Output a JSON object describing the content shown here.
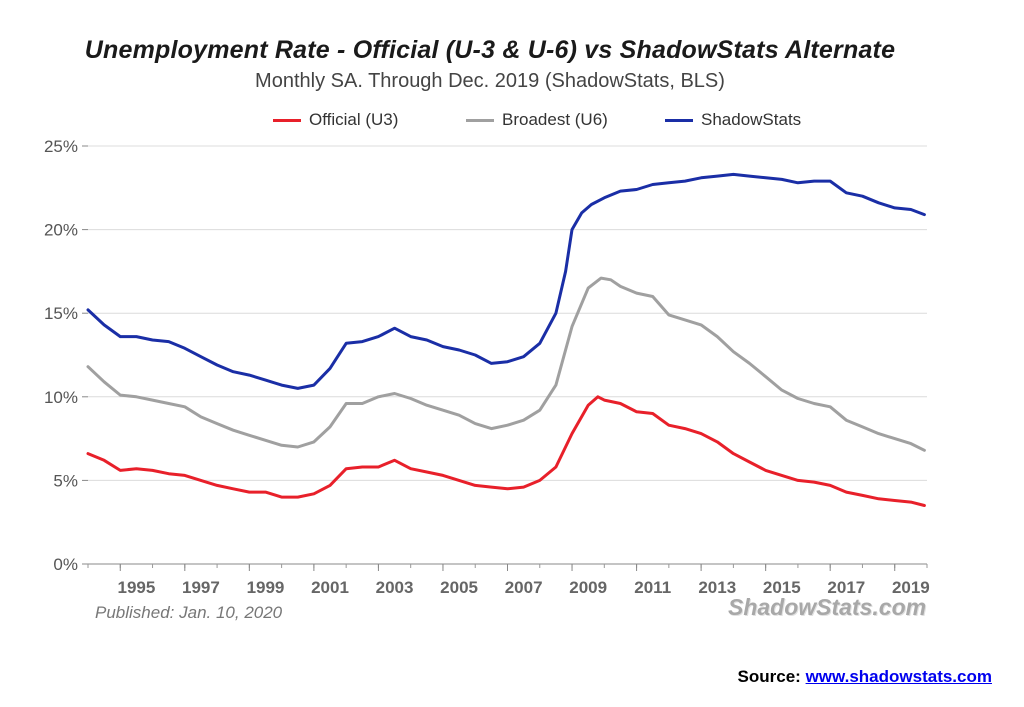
{
  "chart_data": {
    "type": "line",
    "title": "Unemployment Rate - Official (U-3 & U-6) vs ShadowStats Alternate",
    "subtitle": "Monthly SA. Through Dec. 2019  (ShadowStats, BLS)",
    "xlabel": "",
    "ylabel": "",
    "xlim": [
      1994.0,
      2020.0
    ],
    "ylim": [
      0,
      25
    ],
    "grid": true,
    "legend_position": "top",
    "x_ticks": [
      "1995",
      "1997",
      "1999",
      "2001",
      "2003",
      "2005",
      "2007",
      "2009",
      "2011",
      "2013",
      "2015",
      "2017",
      "2019"
    ],
    "y_ticks": [
      "0%",
      "5%",
      "10%",
      "15%",
      "20%",
      "25%"
    ],
    "series": [
      {
        "name": "Official (U3)",
        "color": "#e8202a",
        "x": [
          1994.0,
          1994.5,
          1995.0,
          1995.5,
          1996.0,
          1996.5,
          1997.0,
          1997.5,
          1998.0,
          1998.5,
          1999.0,
          1999.5,
          2000.0,
          2000.5,
          2001.0,
          2001.5,
          2002.0,
          2002.5,
          2003.0,
          2003.5,
          2004.0,
          2004.5,
          2005.0,
          2005.5,
          2006.0,
          2006.5,
          2007.0,
          2007.5,
          2008.0,
          2008.5,
          2009.0,
          2009.5,
          2009.8,
          2010.0,
          2010.5,
          2011.0,
          2011.5,
          2012.0,
          2012.5,
          2013.0,
          2013.5,
          2014.0,
          2014.5,
          2015.0,
          2015.5,
          2016.0,
          2016.5,
          2017.0,
          2017.5,
          2018.0,
          2018.5,
          2019.0,
          2019.5,
          2019.92
        ],
        "values": [
          6.6,
          6.2,
          5.6,
          5.7,
          5.6,
          5.4,
          5.3,
          5.0,
          4.7,
          4.5,
          4.3,
          4.3,
          4.0,
          4.0,
          4.2,
          4.7,
          5.7,
          5.8,
          5.8,
          6.2,
          5.7,
          5.5,
          5.3,
          5.0,
          4.7,
          4.6,
          4.5,
          4.6,
          5.0,
          5.8,
          7.8,
          9.5,
          10.0,
          9.8,
          9.6,
          9.1,
          9.0,
          8.3,
          8.1,
          7.8,
          7.3,
          6.6,
          6.1,
          5.6,
          5.3,
          5.0,
          4.9,
          4.7,
          4.3,
          4.1,
          3.9,
          3.8,
          3.7,
          3.5
        ]
      },
      {
        "name": "Broadest (U6)",
        "color": "#a0a0a0",
        "x": [
          1994.0,
          1994.5,
          1995.0,
          1995.5,
          1996.0,
          1996.5,
          1997.0,
          1997.5,
          1998.0,
          1998.5,
          1999.0,
          1999.5,
          2000.0,
          2000.5,
          2001.0,
          2001.5,
          2002.0,
          2002.5,
          2003.0,
          2003.5,
          2004.0,
          2004.5,
          2005.0,
          2005.5,
          2006.0,
          2006.5,
          2007.0,
          2007.5,
          2008.0,
          2008.5,
          2009.0,
          2009.5,
          2009.9,
          2010.2,
          2010.5,
          2011.0,
          2011.5,
          2012.0,
          2012.5,
          2013.0,
          2013.5,
          2014.0,
          2014.5,
          2015.0,
          2015.5,
          2016.0,
          2016.5,
          2017.0,
          2017.5,
          2018.0,
          2018.5,
          2019.0,
          2019.5,
          2019.92
        ],
        "values": [
          11.8,
          10.9,
          10.1,
          10.0,
          9.8,
          9.6,
          9.4,
          8.8,
          8.4,
          8.0,
          7.7,
          7.4,
          7.1,
          7.0,
          7.3,
          8.2,
          9.6,
          9.6,
          10.0,
          10.2,
          9.9,
          9.5,
          9.2,
          8.9,
          8.4,
          8.1,
          8.3,
          8.6,
          9.2,
          10.7,
          14.2,
          16.5,
          17.1,
          17.0,
          16.6,
          16.2,
          16.0,
          14.9,
          14.6,
          14.3,
          13.6,
          12.7,
          12.0,
          11.2,
          10.4,
          9.9,
          9.6,
          9.4,
          8.6,
          8.2,
          7.8,
          7.5,
          7.2,
          6.8
        ]
      },
      {
        "name": "ShadowStats",
        "color": "#1a2ea6",
        "x": [
          1994.0,
          1994.5,
          1995.0,
          1995.5,
          1996.0,
          1996.5,
          1997.0,
          1997.5,
          1998.0,
          1998.5,
          1999.0,
          1999.5,
          2000.0,
          2000.5,
          2001.0,
          2001.5,
          2001.7,
          2002.0,
          2002.5,
          2003.0,
          2003.5,
          2004.0,
          2004.5,
          2005.0,
          2005.5,
          2006.0,
          2006.5,
          2007.0,
          2007.5,
          2008.0,
          2008.5,
          2008.8,
          2009.0,
          2009.3,
          2009.6,
          2010.0,
          2010.5,
          2011.0,
          2011.5,
          2012.0,
          2012.5,
          2013.0,
          2013.5,
          2014.0,
          2014.5,
          2015.0,
          2015.5,
          2016.0,
          2016.5,
          2017.0,
          2017.5,
          2018.0,
          2018.5,
          2019.0,
          2019.5,
          2019.92
        ],
        "values": [
          15.2,
          14.3,
          13.6,
          13.6,
          13.4,
          13.3,
          12.9,
          12.4,
          11.9,
          11.5,
          11.3,
          11.0,
          10.7,
          10.5,
          10.7,
          11.7,
          12.3,
          13.2,
          13.3,
          13.6,
          14.1,
          13.6,
          13.4,
          13.0,
          12.8,
          12.5,
          12.0,
          12.1,
          12.4,
          13.2,
          15.0,
          17.5,
          20.0,
          21.0,
          21.5,
          21.9,
          22.3,
          22.4,
          22.7,
          22.8,
          22.9,
          23.1,
          23.2,
          23.3,
          23.2,
          23.1,
          23.0,
          22.8,
          22.9,
          22.9,
          22.2,
          22.0,
          21.6,
          21.3,
          21.2,
          20.9
        ]
      }
    ]
  },
  "footer": {
    "published": "Published: Jan. 10, 2020",
    "watermark": "ShadowStats.com",
    "source_label": "Source:",
    "source_link": "www.shadowstats.com"
  }
}
